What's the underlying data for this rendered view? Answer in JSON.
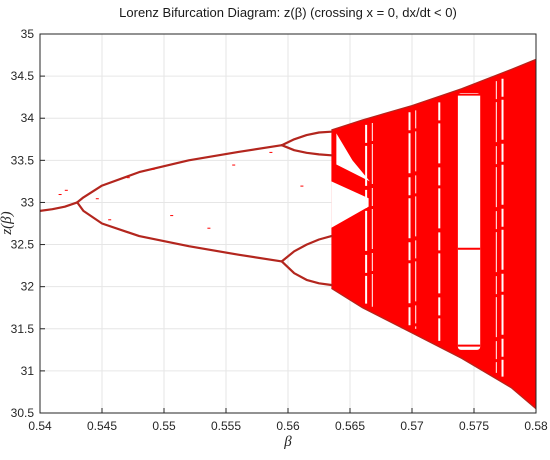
{
  "chart_data": {
    "type": "scatter",
    "title": "Lorenz Bifurcation Diagram: z(β) (crossing x = 0, dx/dt < 0)",
    "xlabel": "β",
    "ylabel": "z(β)",
    "xlim": [
      0.54,
      0.58
    ],
    "ylim": [
      30.5,
      35
    ],
    "x_ticks": [
      "0.54",
      "0.545",
      "0.55",
      "0.555",
      "0.56",
      "0.565",
      "0.57",
      "0.575",
      "0.58"
    ],
    "y_ticks": [
      "30.5",
      "31",
      "31.5",
      "32",
      "32.5",
      "33",
      "33.5",
      "34",
      "34.5",
      "35"
    ],
    "grid": true,
    "colors": {
      "points": "#ff0000",
      "branches": "#b3261e",
      "grid": "#e6e6e6",
      "axis": "#262626"
    },
    "series": [
      {
        "role": "single-branch",
        "x": [
          0.54,
          0.541,
          0.542,
          0.543
        ],
        "y": [
          32.9,
          32.92,
          32.95,
          33.0
        ]
      },
      {
        "role": "period-2-upper",
        "x": [
          0.543,
          0.5435,
          0.545,
          0.548,
          0.552,
          0.556,
          0.5595
        ],
        "y": [
          33.0,
          33.06,
          33.2,
          33.36,
          33.5,
          33.6,
          33.68
        ]
      },
      {
        "role": "period-2-lower",
        "x": [
          0.543,
          0.5435,
          0.545,
          0.548,
          0.552,
          0.556,
          0.5595
        ],
        "y": [
          33.0,
          32.9,
          32.75,
          32.6,
          32.48,
          32.38,
          32.3
        ]
      },
      {
        "role": "period-4-upper-high",
        "x": [
          0.5595,
          0.5605,
          0.5615,
          0.5625,
          0.5635
        ],
        "y": [
          33.68,
          33.75,
          33.8,
          33.83,
          33.84
        ]
      },
      {
        "role": "period-4-upper-low",
        "x": [
          0.5595,
          0.5605,
          0.5615,
          0.5625,
          0.5635
        ],
        "y": [
          33.68,
          33.62,
          33.59,
          33.57,
          33.56
        ]
      },
      {
        "role": "period-4-lower-high",
        "x": [
          0.5595,
          0.5605,
          0.5615,
          0.5625,
          0.5635
        ],
        "y": [
          32.3,
          32.42,
          32.5,
          32.56,
          32.6
        ]
      },
      {
        "role": "period-4-lower-low",
        "x": [
          0.5595,
          0.5605,
          0.5615,
          0.5625,
          0.5635
        ],
        "y": [
          32.3,
          32.16,
          32.08,
          32.04,
          32.02
        ]
      },
      {
        "role": "chaotic-region-upper-envelope",
        "x": [
          0.5635,
          0.566,
          0.57,
          0.574,
          0.578,
          0.58
        ],
        "y": [
          33.86,
          33.98,
          34.15,
          34.35,
          34.58,
          34.7
        ]
      },
      {
        "role": "chaotic-region-lower-envelope",
        "x": [
          0.5635,
          0.566,
          0.57,
          0.574,
          0.578,
          0.58
        ],
        "y": [
          31.98,
          31.75,
          31.45,
          31.15,
          30.8,
          30.55
        ]
      },
      {
        "role": "periodic-window-main",
        "x": [
          0.5737,
          0.5755
        ],
        "y": [
          31.25,
          34.3
        ]
      }
    ]
  }
}
